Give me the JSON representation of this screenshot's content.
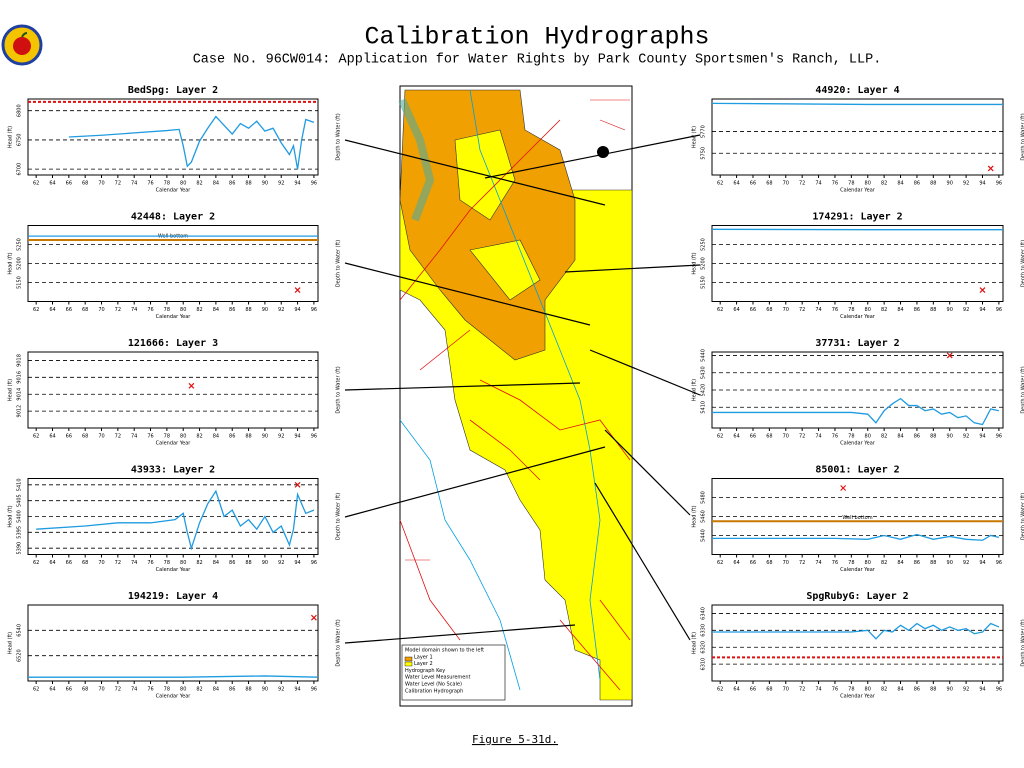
{
  "header": {
    "title": "Calibration Hydrographs",
    "subtitle": "Case No. 96CW014: Application for Water Rights by Park County Sportsmen's Ranch, LLP."
  },
  "caption": "Figure 5-31d.",
  "map": {
    "legend": [
      "Model domain shown to the left",
      "Layer 1",
      "Layer 2",
      "Hydrograph Key",
      "Water Level Measurement",
      "Water Level (No Scale)",
      "Calibration Hydrograph"
    ]
  },
  "chart_data": [
    {
      "type": "line",
      "title": "BedSpg: Layer 2",
      "xlabel": "Calendar Year",
      "ylabel": "Head (ft)",
      "y2label": "Depth to Water (ft)",
      "xlim": [
        61,
        96.5
      ],
      "xticks": [
        62,
        64,
        66,
        68,
        70,
        72,
        74,
        76,
        78,
        80,
        82,
        84,
        86,
        88,
        90,
        92,
        94,
        96
      ],
      "ylim": [
        6690,
        6820
      ],
      "yticks": [
        6700,
        6750,
        6800
      ],
      "grid": true,
      "references": [
        {
          "value": 6815,
          "color": "#e01010"
        }
      ],
      "series": [
        {
          "color": "#1f9be0",
          "x": [
            66,
            70,
            74,
            78,
            79.5,
            80,
            80.5,
            81,
            82,
            83,
            84,
            85,
            86,
            87,
            88,
            89,
            90,
            91,
            92,
            93,
            93.5,
            94,
            94.5,
            95,
            96
          ],
          "values": [
            6755,
            6758,
            6762,
            6766,
            6768,
            6740,
            6705,
            6712,
            6748,
            6770,
            6790,
            6775,
            6760,
            6778,
            6770,
            6782,
            6765,
            6770,
            6745,
            6725,
            6740,
            6700,
            6750,
            6785,
            6780
          ]
        }
      ]
    },
    {
      "type": "line",
      "title": "42448: Layer 2",
      "xlabel": "Calendar Year",
      "ylabel": "Head (ft)",
      "y2label": "Depth to Water (ft)",
      "xlim": [
        61,
        96.5
      ],
      "xticks": [
        62,
        64,
        66,
        68,
        70,
        72,
        74,
        76,
        78,
        80,
        82,
        84,
        86,
        88,
        90,
        92,
        94,
        96
      ],
      "ylim": [
        5100,
        5300
      ],
      "yticks": [
        5150,
        5200,
        5250
      ],
      "grid": true,
      "references": [
        {
          "value": 5262,
          "color": "#c87800",
          "label": "Well bottom"
        }
      ],
      "series": [
        {
          "color": "#1f9be0",
          "x": [
            61,
            96.5
          ],
          "values": [
            5272,
            5272
          ]
        },
        {
          "color": "#e01010",
          "marker": "x",
          "x": [
            94
          ],
          "values": [
            5130
          ]
        }
      ]
    },
    {
      "type": "line",
      "title": "121666: Layer 3",
      "xlabel": "Calendar Year",
      "ylabel": "Head (ft)",
      "y2label": "Depth to Water (ft)",
      "xlim": [
        61,
        96.5
      ],
      "xticks": [
        62,
        64,
        66,
        68,
        70,
        72,
        74,
        76,
        78,
        80,
        82,
        84,
        86,
        88,
        90,
        92,
        94,
        96
      ],
      "ylim": [
        9010,
        9019
      ],
      "yticks": [
        9012,
        9014,
        9016,
        9018
      ],
      "grid": true,
      "series": [
        {
          "color": "#e01010",
          "marker": "x",
          "x": [
            81
          ],
          "values": [
            9015
          ]
        }
      ]
    },
    {
      "type": "line",
      "title": "43933: Layer 2",
      "xlabel": "Calendar Year",
      "ylabel": "Head (ft)",
      "y2label": "Depth to Water (ft)",
      "xlim": [
        61,
        96.5
      ],
      "xticks": [
        62,
        64,
        66,
        68,
        70,
        72,
        74,
        76,
        78,
        80,
        82,
        84,
        86,
        88,
        90,
        92,
        94,
        96
      ],
      "ylim": [
        5388,
        5412
      ],
      "yticks": [
        5390,
        5395,
        5400,
        5405,
        5410
      ],
      "grid": true,
      "series": [
        {
          "color": "#1f9be0",
          "x": [
            62,
            68,
            72,
            76,
            79,
            80,
            80.5,
            81,
            82,
            83,
            84,
            85,
            86,
            87,
            88,
            89,
            90,
            91,
            92,
            93,
            93.5,
            94,
            95,
            96
          ],
          "values": [
            5396,
            5397,
            5398,
            5398,
            5399,
            5401,
            5395,
            5390,
            5398,
            5404,
            5408,
            5400,
            5402,
            5397,
            5399,
            5396,
            5400,
            5395,
            5397,
            5391,
            5396,
            5407,
            5401,
            5402
          ]
        },
        {
          "color": "#e01010",
          "marker": "x",
          "x": [
            94
          ],
          "values": [
            5410
          ]
        }
      ]
    },
    {
      "type": "line",
      "title": "194219: Layer 4",
      "xlabel": "Calendar Year",
      "ylabel": "Head (ft)",
      "y2label": "Depth to Water (ft)",
      "xlim": [
        61,
        96.5
      ],
      "xticks": [
        62,
        64,
        66,
        68,
        70,
        72,
        74,
        76,
        78,
        80,
        82,
        84,
        86,
        88,
        90,
        92,
        94,
        96
      ],
      "ylim": [
        6500,
        6560
      ],
      "yticks": [
        6520,
        6540
      ],
      "grid": true,
      "series": [
        {
          "color": "#1f9be0",
          "x": [
            61,
            80,
            90,
            96.5
          ],
          "values": [
            6503,
            6503,
            6504,
            6503
          ]
        },
        {
          "color": "#e01010",
          "marker": "x",
          "x": [
            96
          ],
          "values": [
            6550
          ]
        }
      ]
    },
    {
      "type": "line",
      "title": "44920: Layer 4",
      "xlabel": "Calendar Year",
      "ylabel": "Head (ft)",
      "y2label": "Depth to Water (ft)",
      "xlim": [
        61,
        96.5
      ],
      "xticks": [
        62,
        64,
        66,
        68,
        70,
        72,
        74,
        76,
        78,
        80,
        82,
        84,
        86,
        88,
        90,
        92,
        94,
        96
      ],
      "ylim": [
        5730,
        5800
      ],
      "yticks": [
        5750,
        5770
      ],
      "grid": true,
      "series": [
        {
          "color": "#1f9be0",
          "x": [
            61,
            80,
            96.5
          ],
          "values": [
            5796,
            5795,
            5795
          ]
        },
        {
          "color": "#e01010",
          "marker": "x",
          "x": [
            95
          ],
          "values": [
            5736
          ]
        }
      ]
    },
    {
      "type": "line",
      "title": "174291: Layer 2",
      "xlabel": "Calendar Year",
      "ylabel": "Head (ft)",
      "y2label": "Depth to Water (ft)",
      "xlim": [
        61,
        96.5
      ],
      "xticks": [
        62,
        64,
        66,
        68,
        70,
        72,
        74,
        76,
        78,
        80,
        82,
        84,
        86,
        88,
        90,
        92,
        94,
        96
      ],
      "ylim": [
        5100,
        5300
      ],
      "yticks": [
        5150,
        5200,
        5250
      ],
      "grid": true,
      "series": [
        {
          "color": "#1f9be0",
          "x": [
            61,
            80,
            96.5
          ],
          "values": [
            5290,
            5289,
            5289
          ]
        },
        {
          "color": "#e01010",
          "marker": "x",
          "x": [
            94
          ],
          "values": [
            5130
          ]
        }
      ]
    },
    {
      "type": "line",
      "title": "37731: Layer 2",
      "xlabel": "Calendar Year",
      "ylabel": "Head (ft)",
      "y2label": "Depth to Water (ft)",
      "xlim": [
        61,
        96.5
      ],
      "xticks": [
        62,
        64,
        66,
        68,
        70,
        72,
        74,
        76,
        78,
        80,
        82,
        84,
        86,
        88,
        90,
        92,
        94,
        96
      ],
      "ylim": [
        5398,
        5442
      ],
      "yticks": [
        5410,
        5420,
        5430,
        5440
      ],
      "grid": true,
      "series": [
        {
          "color": "#1f9be0",
          "x": [
            61,
            70,
            78,
            80,
            81,
            82,
            83,
            84,
            85,
            86,
            87,
            88,
            89,
            90,
            91,
            92,
            93,
            94,
            95,
            96
          ],
          "values": [
            5407,
            5407,
            5407,
            5406,
            5401,
            5408,
            5412,
            5415,
            5411,
            5411,
            5408,
            5409,
            5406,
            5407,
            5404,
            5405,
            5401,
            5400,
            5409,
            5408
          ]
        },
        {
          "color": "#e01010",
          "marker": "x",
          "x": [
            90
          ],
          "values": [
            5440
          ]
        }
      ]
    },
    {
      "type": "line",
      "title": "85001: Layer 2",
      "xlabel": "Calendar Year",
      "ylabel": "Head (ft)",
      "y2label": "Depth to Water (ft)",
      "xlim": [
        61,
        96.5
      ],
      "xticks": [
        62,
        64,
        66,
        68,
        70,
        72,
        74,
        76,
        78,
        80,
        82,
        84,
        86,
        88,
        90,
        92,
        94,
        96
      ],
      "ylim": [
        5420,
        5500
      ],
      "yticks": [
        5440,
        5460,
        5480
      ],
      "grid": true,
      "references": [
        {
          "value": 5455,
          "color": "#c87800",
          "label": "Well bottom"
        }
      ],
      "series": [
        {
          "color": "#1f9be0",
          "x": [
            61,
            76,
            80,
            82,
            84,
            86,
            88,
            90,
            92,
            94,
            95,
            96
          ],
          "values": [
            5437,
            5437,
            5436,
            5440,
            5436,
            5441,
            5436,
            5439,
            5436,
            5435,
            5440,
            5438
          ]
        },
        {
          "color": "#e01010",
          "marker": "x",
          "x": [
            77
          ],
          "values": [
            5490
          ]
        }
      ]
    },
    {
      "type": "line",
      "title": "SpgRubyG: Layer 2",
      "xlabel": "Calendar Year",
      "ylabel": "Head (ft)",
      "y2label": "Depth to Water (ft)",
      "xlim": [
        61,
        96.5
      ],
      "xticks": [
        62,
        64,
        66,
        68,
        70,
        72,
        74,
        76,
        78,
        80,
        82,
        84,
        86,
        88,
        90,
        92,
        94,
        96
      ],
      "ylim": [
        6300,
        6345
      ],
      "yticks": [
        6310,
        6320,
        6330,
        6340
      ],
      "grid": true,
      "references": [
        {
          "value": 6314,
          "color": "#e01010"
        }
      ],
      "series": [
        {
          "color": "#1f9be0",
          "x": [
            61,
            70,
            78,
            80,
            81,
            82,
            83,
            84,
            85,
            86,
            87,
            88,
            89,
            90,
            91,
            92,
            93,
            94,
            95,
            96
          ],
          "values": [
            6329,
            6329,
            6329,
            6330,
            6325,
            6330,
            6329,
            6333,
            6330,
            6334,
            6331,
            6333,
            6330,
            6332,
            6330,
            6331,
            6328,
            6329,
            6334,
            6332
          ]
        }
      ]
    }
  ]
}
